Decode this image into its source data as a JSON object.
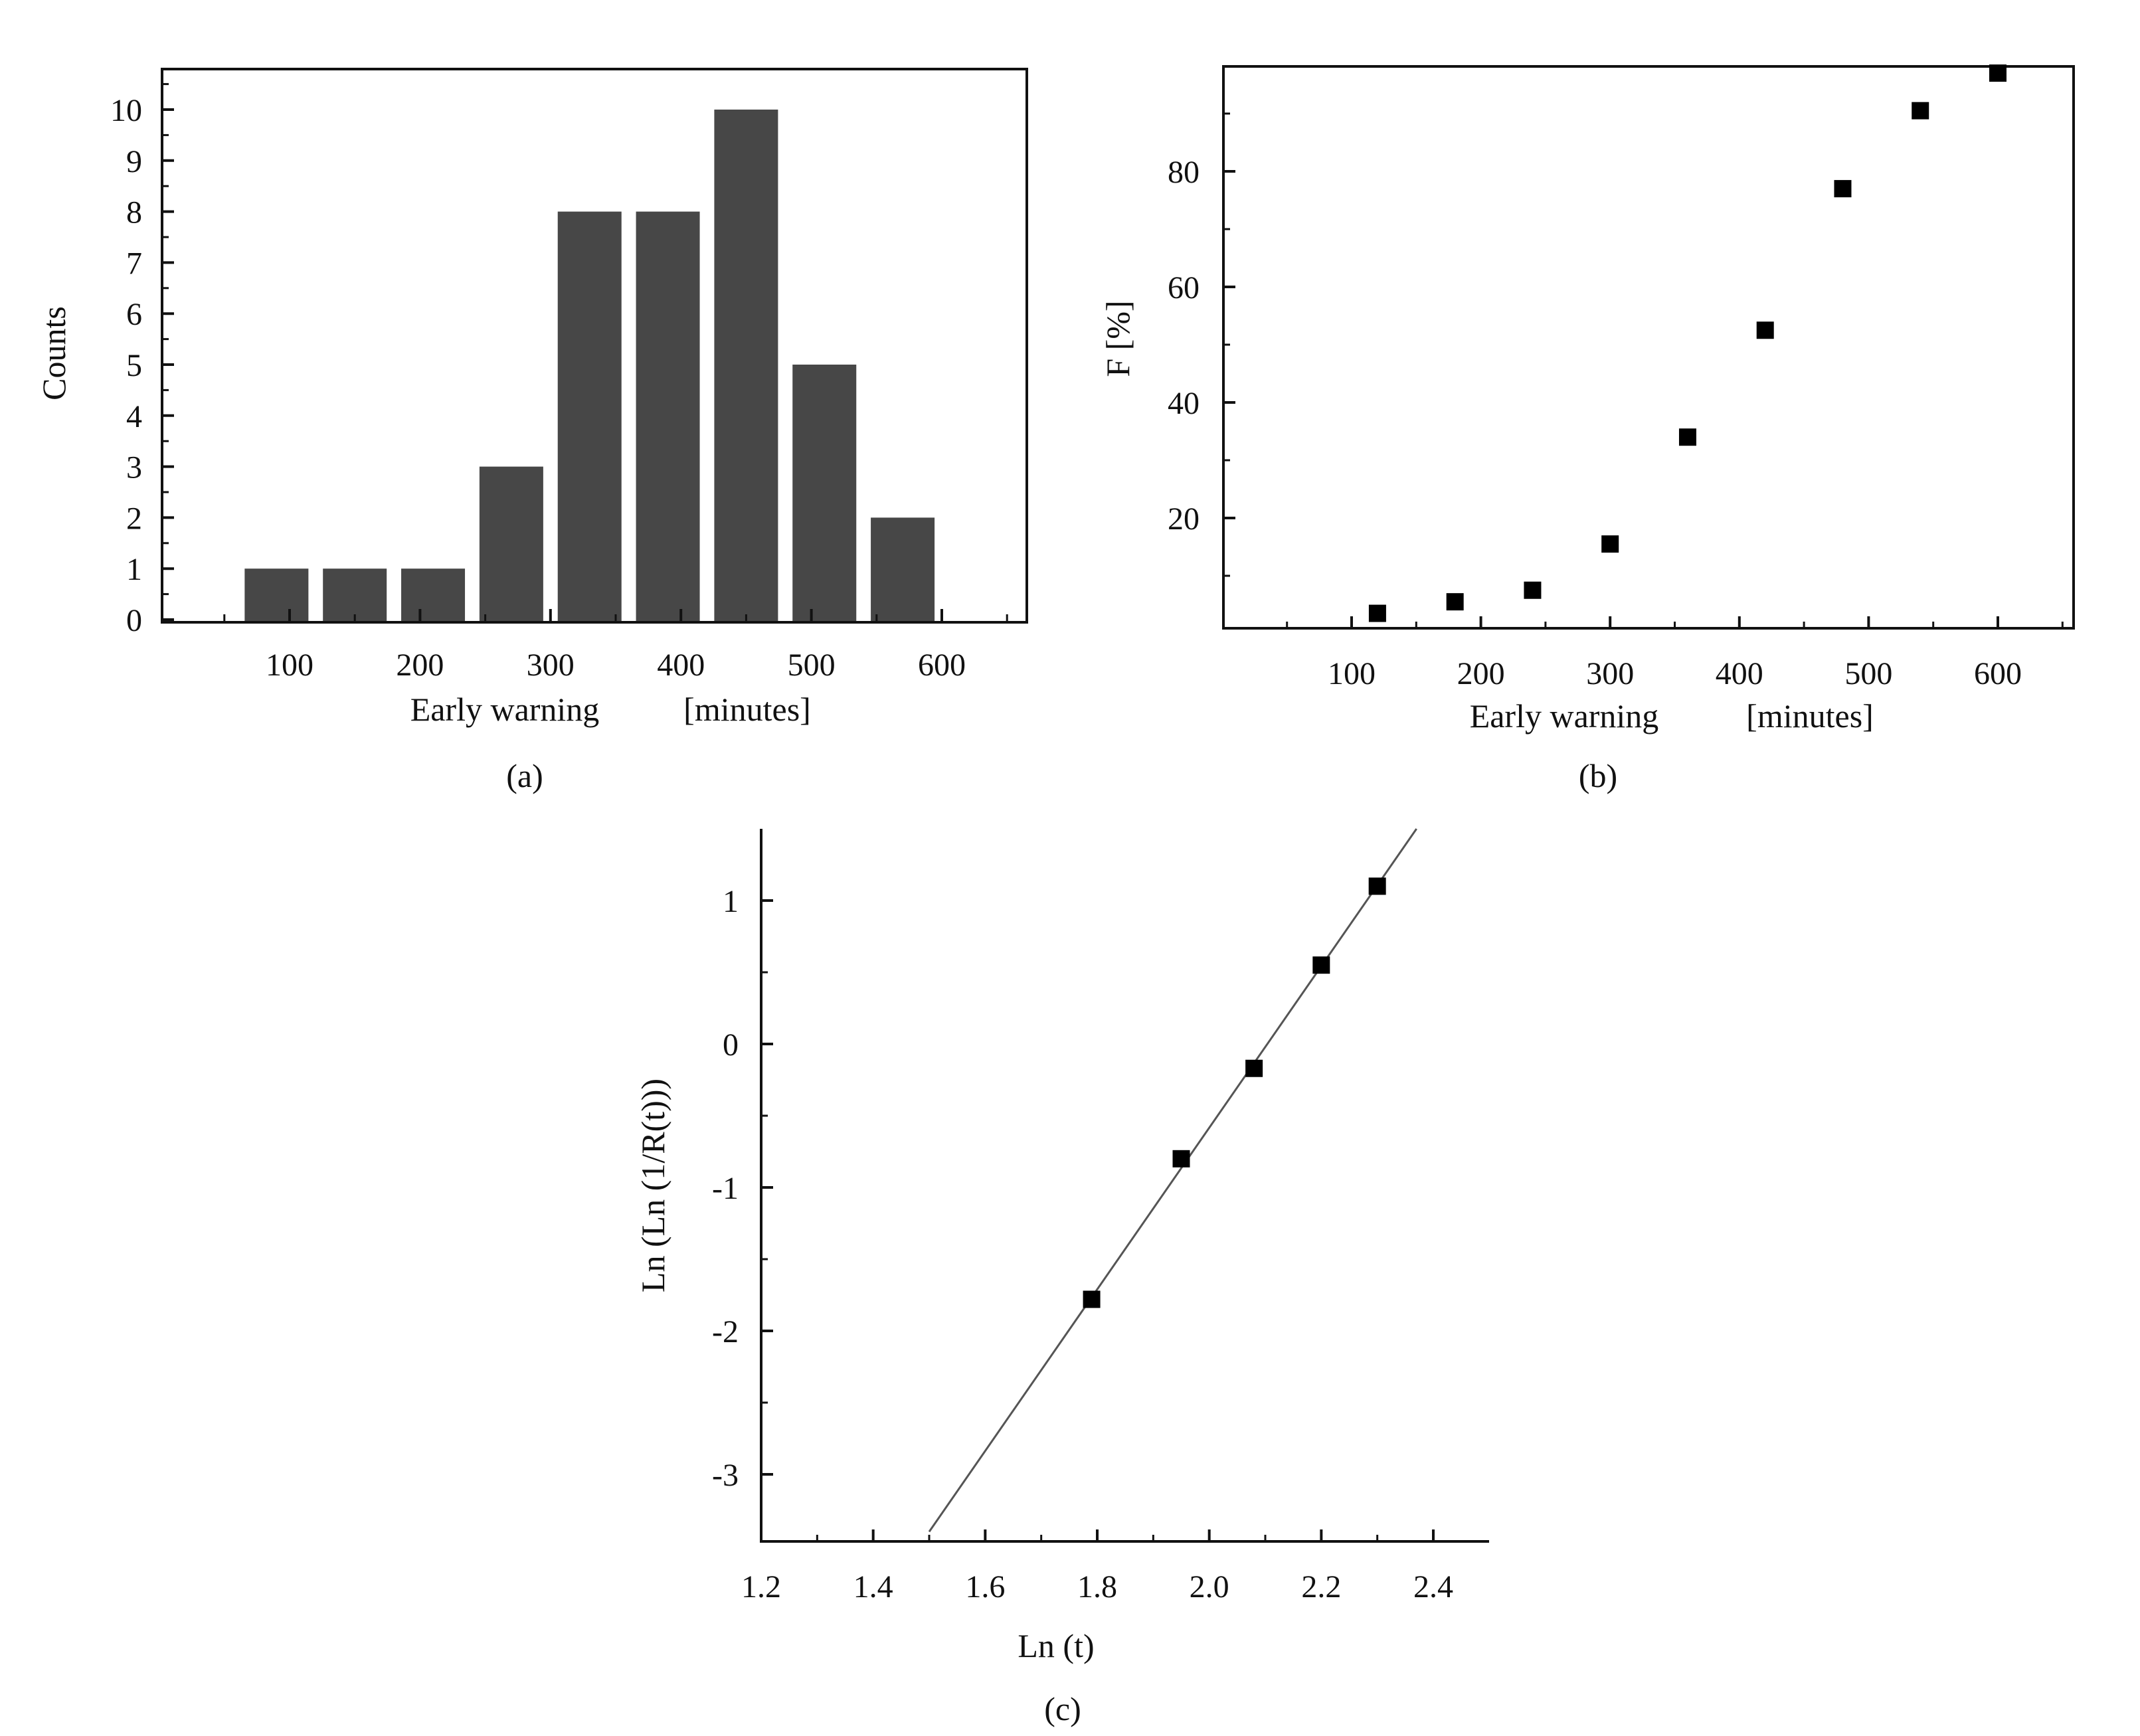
{
  "colors": {
    "bar": "#474747",
    "marker": "#000000",
    "axis": "#111111",
    "fit_line": "#555555"
  },
  "chart_data": [
    {
      "id": "a",
      "type": "bar",
      "caption": "(a)",
      "xlabel": "Early warning",
      "xlabel_unit": "[minutes]",
      "ylabel": "Counts",
      "x": [
        120,
        180,
        240,
        300,
        360,
        420,
        480,
        540,
        600
      ],
      "values": [
        1,
        1,
        1,
        3,
        8,
        8,
        10,
        5,
        2
      ],
      "xlim": [
        0,
        660
      ],
      "ylim": [
        0,
        11
      ],
      "xticks": [
        100,
        200,
        300,
        400,
        500,
        600
      ],
      "yticks": [
        0,
        1,
        2,
        3,
        4,
        5,
        6,
        7,
        8,
        9,
        10
      ],
      "grid": false,
      "legend": "none"
    },
    {
      "id": "b",
      "type": "scatter",
      "caption": "(b)",
      "xlabel": "Early warning",
      "xlabel_unit": "[minutes]",
      "ylabel": "F [%]",
      "marker": "square",
      "x": [
        120,
        180,
        240,
        300,
        360,
        420,
        480,
        540,
        600
      ],
      "y": [
        3.5,
        5.5,
        7.5,
        15.5,
        34,
        52.5,
        77,
        90.5,
        97
      ],
      "xlim": [
        0,
        660
      ],
      "ylim": [
        0,
        98
      ],
      "xticks": [
        100,
        200,
        300,
        400,
        500,
        600
      ],
      "yticks": [
        20,
        40,
        60,
        80
      ],
      "grid": false,
      "legend": "none"
    },
    {
      "id": "c",
      "type": "scatter",
      "caption": "(c)",
      "xlabel": "Ln (t)",
      "ylabel": "Ln (Ln (1/R(t)))",
      "marker": "square",
      "x": [
        1.79,
        1.95,
        2.08,
        2.2,
        2.3
      ],
      "y": [
        -1.78,
        -0.8,
        -0.17,
        0.55,
        1.1
      ],
      "fit_line": {
        "x": [
          1.5,
          2.37
        ],
        "y": [
          -3.4,
          1.5
        ]
      },
      "xlim": [
        1.2,
        2.5
      ],
      "ylim": [
        -3.45,
        1.5
      ],
      "xticks": [
        1.2,
        1.4,
        1.6,
        1.8,
        2.0,
        2.2,
        2.4
      ],
      "yticks": [
        -3,
        -2,
        -1,
        0,
        1
      ],
      "grid": false,
      "legend": "none"
    }
  ]
}
